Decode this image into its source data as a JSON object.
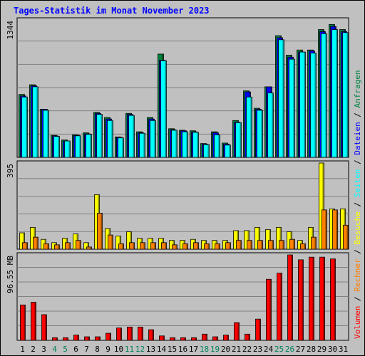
{
  "title": "Tages-Statistik im Monat November 2023",
  "colors": {
    "background": "#c0c0c0",
    "plot_bg": "#c0c0c0",
    "title": "#0000ff",
    "anfragen": "#008040",
    "dateien": "#0000ff",
    "seiten": "#00ffff",
    "besuche": "#ffff00",
    "rechner": "#ff8000",
    "volumen": "#ff0000",
    "weekend_label": "#00805c"
  },
  "right_legend": {
    "top": [
      {
        "text": "Anfragen",
        "color": "#008040"
      },
      {
        "text": "Dateien",
        "color": "#0000ff"
      },
      {
        "text": "Seiten",
        "color": "#00ffff"
      },
      {
        "text": "Besuche",
        "color": "#ffff00"
      },
      {
        "text": "Rechner",
        "color": "#ff8000"
      },
      {
        "text": "Volumen",
        "color": "#ff0000"
      }
    ],
    "separator": "/"
  },
  "chart_data": [
    {
      "type": "bar",
      "panel": "hits",
      "ymax_label": "1344",
      "ylim": [
        0,
        1344
      ],
      "categories": [
        "1",
        "2",
        "3",
        "4",
        "5",
        "6",
        "7",
        "8",
        "9",
        "10",
        "11",
        "12",
        "13",
        "14",
        "15",
        "16",
        "17",
        "18",
        "19",
        "20",
        "21",
        "22",
        "23",
        "24",
        "25",
        "26",
        "27",
        "28",
        "29",
        "30",
        "31"
      ],
      "series": [
        {
          "name": "Anfragen",
          "values": [
            615,
            710,
            470,
            215,
            170,
            220,
            240,
            440,
            390,
            200,
            430,
            250,
            390,
            1010,
            280,
            265,
            260,
            135,
            250,
            140,
            360,
            650,
            480,
            690,
            1190,
            1000,
            1050,
            1050,
            1250,
            1300,
            1250
          ]
        },
        {
          "name": "Dateien",
          "values": [
            600,
            700,
            470,
            210,
            160,
            215,
            230,
            430,
            375,
            195,
            420,
            240,
            375,
            950,
            270,
            260,
            250,
            130,
            240,
            130,
            345,
            640,
            470,
            690,
            1170,
            980,
            1030,
            1040,
            1230,
            1280,
            1230
          ]
        },
        {
          "name": "Seiten",
          "values": [
            590,
            690,
            460,
            205,
            160,
            210,
            225,
            420,
            360,
            190,
            410,
            235,
            360,
            945,
            265,
            250,
            245,
            125,
            220,
            120,
            340,
            590,
            460,
            630,
            1150,
            960,
            1030,
            1020,
            1210,
            1250,
            1220
          ]
        }
      ]
    },
    {
      "type": "bar",
      "panel": "visits",
      "ymax_label": "395",
      "ylim": [
        0,
        395
      ],
      "categories": [
        "1",
        "2",
        "3",
        "4",
        "5",
        "6",
        "7",
        "8",
        "9",
        "10",
        "11",
        "12",
        "13",
        "14",
        "15",
        "16",
        "17",
        "18",
        "19",
        "20",
        "21",
        "22",
        "23",
        "24",
        "25",
        "26",
        "27",
        "28",
        "29",
        "30",
        "31"
      ],
      "series": [
        {
          "name": "Besuche",
          "values": [
            75,
            100,
            45,
            30,
            50,
            70,
            30,
            250,
            95,
            60,
            80,
            50,
            50,
            50,
            40,
            40,
            45,
            40,
            40,
            40,
            85,
            85,
            100,
            90,
            100,
            80,
            40,
            100,
            395,
            185,
            185
          ]
        },
        {
          "name": "Rechner",
          "values": [
            30,
            55,
            25,
            20,
            30,
            40,
            10,
            165,
            65,
            25,
            30,
            30,
            30,
            30,
            20,
            25,
            30,
            25,
            25,
            30,
            40,
            40,
            40,
            40,
            40,
            45,
            25,
            55,
            180,
            180,
            110
          ]
        }
      ]
    },
    {
      "type": "bar",
      "panel": "volume",
      "ymax_label": "96.55 MB",
      "ylim": [
        0,
        96.55
      ],
      "categories": [
        "1",
        "2",
        "3",
        "4",
        "5",
        "6",
        "7",
        "8",
        "9",
        "10",
        "11",
        "12",
        "13",
        "14",
        "15",
        "16",
        "17",
        "18",
        "19",
        "20",
        "21",
        "22",
        "23",
        "24",
        "25",
        "26",
        "27",
        "28",
        "29",
        "30",
        "31"
      ],
      "series": [
        {
          "name": "Volumen",
          "values": [
            40,
            43,
            29,
            3,
            3,
            6,
            4,
            4,
            8,
            14,
            15,
            15,
            12,
            5,
            3,
            3,
            3,
            7,
            4,
            6,
            20,
            7,
            24,
            69,
            76,
            96.55,
            91,
            94,
            94,
            92,
            0
          ]
        }
      ]
    }
  ],
  "x_labels": [
    {
      "text": "1",
      "weekend": false
    },
    {
      "text": "2",
      "weekend": false
    },
    {
      "text": "3",
      "weekend": false
    },
    {
      "text": "4",
      "weekend": true
    },
    {
      "text": "5",
      "weekend": true
    },
    {
      "text": "6",
      "weekend": false
    },
    {
      "text": "7",
      "weekend": false
    },
    {
      "text": "8",
      "weekend": false
    },
    {
      "text": "9",
      "weekend": false
    },
    {
      "text": "10",
      "weekend": false
    },
    {
      "text": "11",
      "weekend": true
    },
    {
      "text": "12",
      "weekend": true
    },
    {
      "text": "13",
      "weekend": false
    },
    {
      "text": "14",
      "weekend": false
    },
    {
      "text": "15",
      "weekend": false
    },
    {
      "text": "16",
      "weekend": false
    },
    {
      "text": "17",
      "weekend": false
    },
    {
      "text": "18",
      "weekend": true
    },
    {
      "text": "19",
      "weekend": true
    },
    {
      "text": "20",
      "weekend": false
    },
    {
      "text": "21",
      "weekend": false
    },
    {
      "text": "22",
      "weekend": false
    },
    {
      "text": "23",
      "weekend": false
    },
    {
      "text": "24",
      "weekend": false
    },
    {
      "text": "25",
      "weekend": true
    },
    {
      "text": "26",
      "weekend": true
    },
    {
      "text": "27",
      "weekend": false
    },
    {
      "text": "28",
      "weekend": false
    },
    {
      "text": "29",
      "weekend": false
    },
    {
      "text": "30",
      "weekend": false
    },
    {
      "text": "31",
      "weekend": false
    }
  ]
}
